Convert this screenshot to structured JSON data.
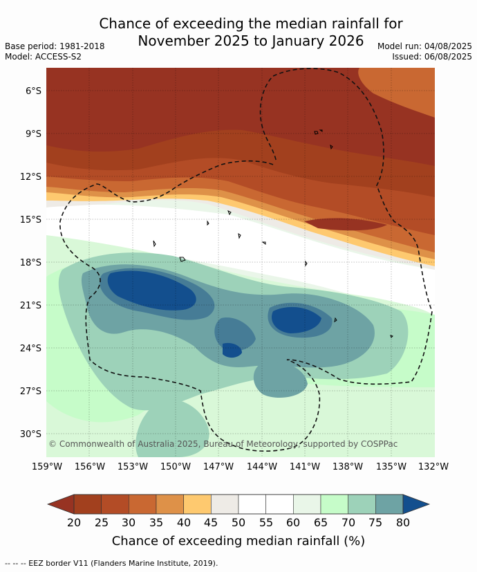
{
  "title": {
    "line1": "Chance of exceeding the median rainfall for",
    "line2": "November 2025 to January 2026"
  },
  "meta": {
    "base_period": "Base period: 1981-2018",
    "model": "Model: ACCESS-S2",
    "model_run": "Model run: 04/08/2025",
    "issued": "Issued: 06/08/2025"
  },
  "map": {
    "lat_labels": [
      "6°S",
      "9°S",
      "12°S",
      "15°S",
      "18°S",
      "21°S",
      "24°S",
      "27°S",
      "30°S"
    ],
    "lon_labels": [
      "159°W",
      "156°W",
      "153°W",
      "150°W",
      "147°W",
      "144°W",
      "141°W",
      "138°W",
      "135°W",
      "132°W"
    ],
    "copyright": "© Commonwealth of Australia 2025, Bureau of Meteorology, supported by COSPPac"
  },
  "colorbar": {
    "ticks": [
      "20",
      "25",
      "30",
      "35",
      "40",
      "45",
      "50",
      "55",
      "60",
      "65",
      "70",
      "75",
      "80"
    ],
    "colors": [
      "#a2401e",
      "#b34c26",
      "#c96832",
      "#de9148",
      "#fec96f",
      "#eeebe6",
      "#ffffff",
      "#ffffff",
      "#e9f6e8",
      "#c6fcc9",
      "#9dd2b9",
      "#6ea3a4",
      "#467c96"
    ],
    "low_arrow_color": "#973322",
    "high_arrow_color": "#134f8e",
    "label": "Chance of exceeding median rainfall (%)"
  },
  "footer": "-- -- -- EEZ border V11 (Flanders Marine Institute, 2019)."
}
